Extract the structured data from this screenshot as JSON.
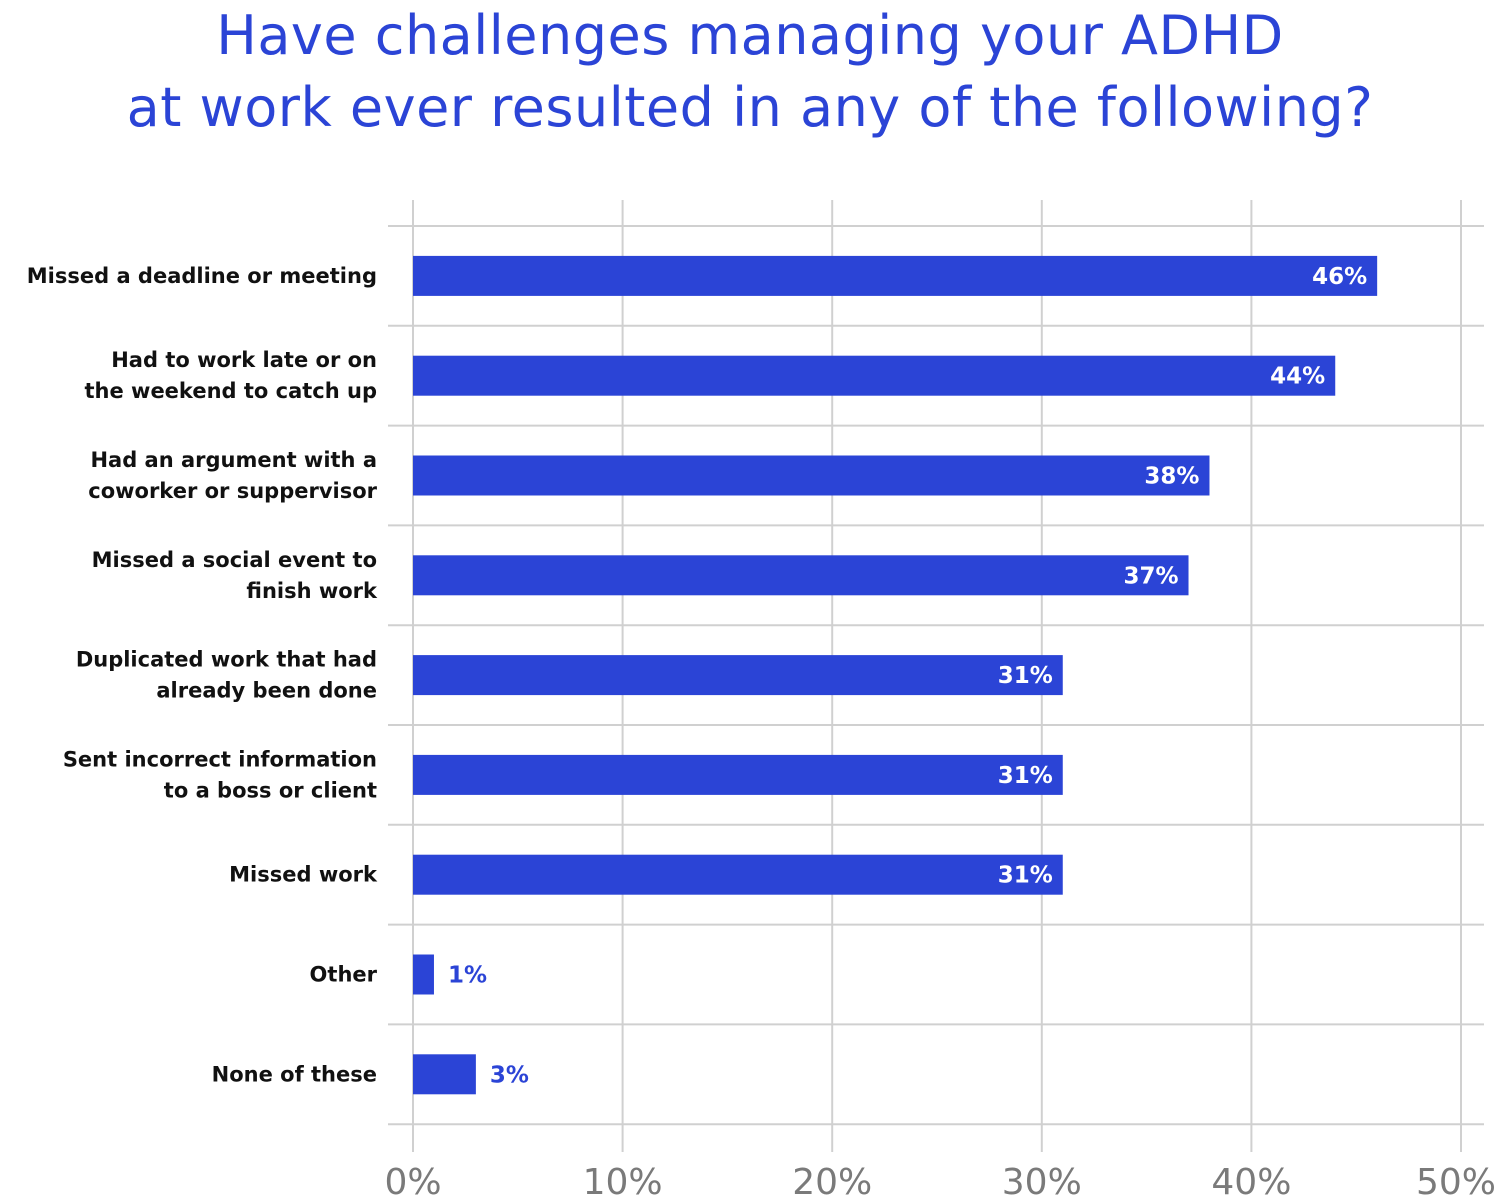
{
  "title_lines": [
    "Have challenges managing your ADHD",
    "at work ever resulted in any of the following?"
  ],
  "colors": {
    "bar": "#2b44d6",
    "grid": "#d0d0d0",
    "tick_text": "#7a7a7a",
    "label_text": "#111111",
    "title": "#2b44d6"
  },
  "chart_data": {
    "type": "bar",
    "orientation": "horizontal",
    "title": "Have challenges managing your ADHD at work ever resulted in any of the following?",
    "categories": [
      [
        "Missed a deadline or meeting"
      ],
      [
        "Had to work late or on",
        "the weekend to catch up"
      ],
      [
        "Had an argument with a",
        "coworker or suppervisor"
      ],
      [
        "Missed a social event to",
        "finish work"
      ],
      [
        "Duplicated work that had",
        "already been done"
      ],
      [
        "Sent incorrect information",
        "to a boss or client"
      ],
      [
        "Missed work"
      ],
      [
        "Other"
      ],
      [
        "None of these"
      ]
    ],
    "values": [
      46,
      44,
      38,
      37,
      31,
      31,
      31,
      1,
      3
    ],
    "value_labels": [
      "46%",
      "44%",
      "38%",
      "37%",
      "31%",
      "31%",
      "31%",
      "1%",
      "3%"
    ],
    "xlim": [
      0,
      50
    ],
    "ticks": [
      0,
      10,
      20,
      30,
      40,
      50
    ],
    "tick_labels": [
      "0%",
      "10%",
      "20%",
      "30%",
      "40%",
      "50%"
    ],
    "grid": true,
    "legend": "none"
  }
}
